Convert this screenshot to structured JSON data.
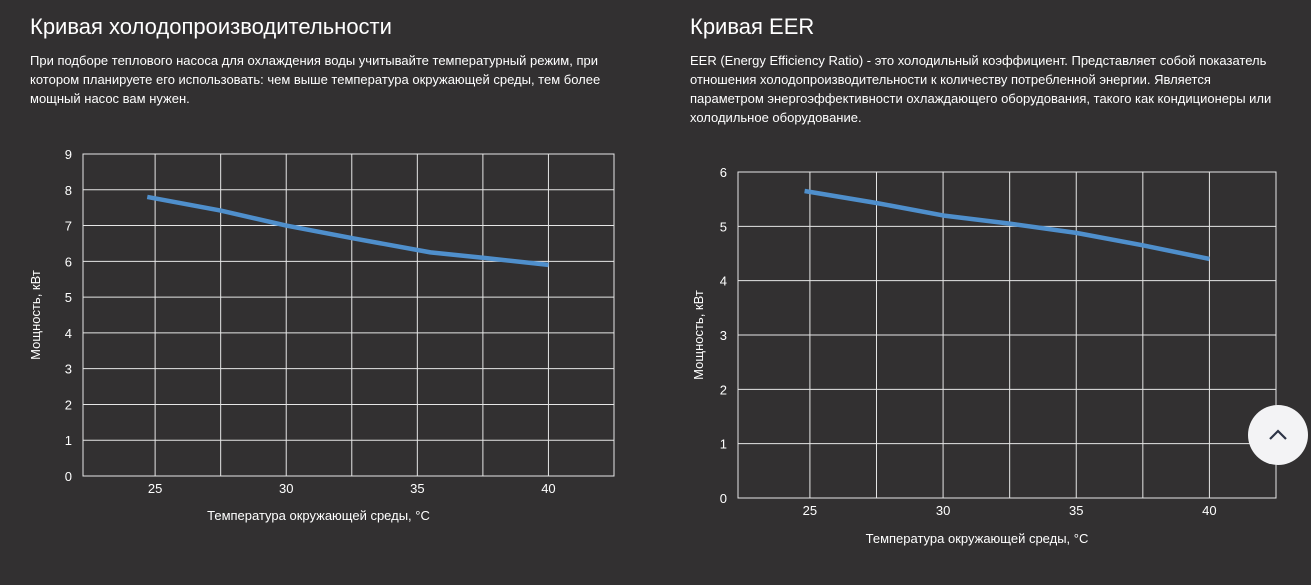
{
  "left": {
    "title": "Кривая холодопроизводительности",
    "description": "При подборе теплового насоса для охлаждения воды учитывайте температурный режим, при котором планируете его использовать: чем выше температура окружающей среды, тем более мощный насос вам нужен."
  },
  "right": {
    "title": "Кривая EER",
    "description": "EER (Energy Efficiency Ratio) - это холодильный коэффициент. Представляет собой показатель отношения холодопроизводительности к количеству потребленной энергии. Является параметром энергоэффективности охлаждающего оборудования, такого как кондиционеры или холодильное оборудование."
  },
  "scroll_top_icon": "chevron-up-icon",
  "chart_data": [
    {
      "type": "line",
      "title": "Кривая холодопроизводительности",
      "xlabel": "Температура окружающей среды, °C",
      "ylabel": "Мощность, кВт",
      "xlim": [
        22.25,
        42.5
      ],
      "ylim": [
        0,
        9
      ],
      "xticks": [
        25,
        30,
        35,
        40
      ],
      "yticks": [
        0,
        1,
        2,
        3,
        4,
        5,
        6,
        7,
        8,
        9
      ],
      "xgrid": [
        25,
        27.5,
        30,
        32.5,
        35,
        37.5,
        40
      ],
      "grid": true,
      "color": "#4f8fcc",
      "series": [
        {
          "name": "Мощность",
          "x": [
            24.7,
            27.5,
            30,
            32.5,
            35.5,
            37.5,
            40
          ],
          "y": [
            7.8,
            7.42,
            7.0,
            6.65,
            6.25,
            6.1,
            5.9
          ]
        }
      ]
    },
    {
      "type": "line",
      "title": "Кривая EER",
      "xlabel": "Температура окружающей среды, °C",
      "ylabel": "Мощность, кВт",
      "xlim": [
        22.3,
        42.5
      ],
      "ylim": [
        0,
        6
      ],
      "xticks": [
        25,
        30,
        35,
        40
      ],
      "yticks": [
        0,
        1,
        2,
        3,
        4,
        5,
        6
      ],
      "xgrid": [
        25,
        27.5,
        30,
        32.5,
        35,
        37.5,
        40
      ],
      "grid": true,
      "color": "#4f8fcc",
      "series": [
        {
          "name": "EER",
          "x": [
            24.8,
            27.5,
            30,
            32.5,
            35,
            37.5,
            40
          ],
          "y": [
            5.65,
            5.43,
            5.2,
            5.05,
            4.88,
            4.65,
            4.4
          ]
        }
      ]
    }
  ]
}
